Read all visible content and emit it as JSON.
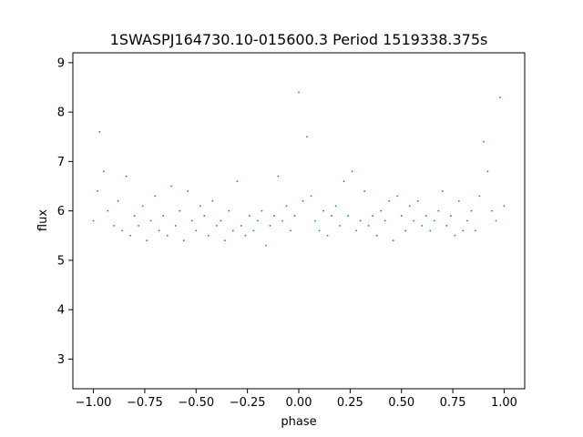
{
  "chart_data": {
    "type": "scatter",
    "title": "1SWASPJ164730.10-015600.3 Period 1519338.375s",
    "xlabel": "phase",
    "ylabel": "flux",
    "xlim": [
      -1.1,
      1.1
    ],
    "ylim": [
      2.4,
      9.2
    ],
    "x_ticks": [
      -1.0,
      -0.75,
      -0.5,
      -0.25,
      0.0,
      0.25,
      0.5,
      0.75,
      1.0
    ],
    "x_tick_labels": [
      "−1.00",
      "−0.75",
      "−0.50",
      "−0.25",
      "0.00",
      "0.25",
      "0.50",
      "0.75",
      "1.00"
    ],
    "y_ticks": [
      3,
      4,
      5,
      6,
      7,
      8,
      9
    ],
    "y_tick_labels": [
      "3",
      "4",
      "5",
      "6",
      "7",
      "8",
      "9"
    ],
    "grid": false,
    "point_color": "#1f77b4",
    "series": [
      {
        "x": [
          -1.0,
          -0.98,
          -0.97,
          -0.95,
          -0.93,
          -0.9,
          -0.88,
          -0.86,
          -0.84,
          -0.82,
          -0.8,
          -0.78,
          -0.76,
          -0.74,
          -0.72,
          -0.7,
          -0.68,
          -0.66,
          -0.64,
          -0.62,
          -0.6,
          -0.58,
          -0.56,
          -0.54,
          -0.52,
          -0.5,
          -0.48,
          -0.46,
          -0.44,
          -0.42,
          -0.4,
          -0.38,
          -0.36,
          -0.34,
          -0.32,
          -0.3,
          -0.28,
          -0.26,
          -0.24,
          -0.22,
          -0.2,
          -0.18,
          -0.16,
          -0.14,
          -0.12,
          -0.1,
          -0.08,
          -0.06,
          -0.04,
          -0.02,
          0.0,
          0.02,
          0.04,
          0.06,
          0.08,
          0.1,
          0.12,
          0.14,
          0.16,
          0.18,
          0.2,
          0.22,
          0.24,
          0.26,
          0.28,
          0.3,
          0.32,
          0.34,
          0.36,
          0.38,
          0.4,
          0.42,
          0.44,
          0.46,
          0.48,
          0.5,
          0.52,
          0.54,
          0.56,
          0.58,
          0.6,
          0.62,
          0.64,
          0.66,
          0.68,
          0.7,
          0.72,
          0.74,
          0.76,
          0.78,
          0.8,
          0.82,
          0.84,
          0.86,
          0.88,
          0.9,
          0.92,
          0.94,
          0.96,
          0.98,
          1.0
        ],
        "y": [
          5.8,
          6.4,
          7.6,
          6.8,
          6.0,
          5.7,
          6.2,
          5.6,
          6.7,
          5.5,
          5.9,
          5.7,
          6.1,
          5.4,
          5.8,
          6.3,
          5.6,
          5.9,
          5.5,
          6.5,
          5.7,
          6.0,
          5.4,
          6.4,
          5.8,
          5.6,
          6.1,
          5.9,
          5.5,
          6.2,
          5.7,
          5.8,
          5.4,
          6.0,
          5.6,
          6.6,
          5.7,
          5.5,
          5.9,
          5.6,
          5.8,
          6.0,
          5.3,
          5.7,
          5.9,
          6.7,
          5.8,
          6.1,
          5.6,
          5.9,
          8.4,
          6.2,
          7.5,
          6.3,
          5.8,
          5.6,
          6.0,
          5.5,
          5.9,
          6.1,
          5.7,
          6.6,
          5.9,
          6.8,
          5.6,
          5.8,
          6.4,
          5.7,
          5.9,
          5.5,
          6.0,
          5.8,
          6.2,
          5.4,
          6.3,
          5.9,
          5.6,
          6.1,
          5.8,
          6.2,
          5.7,
          5.9,
          5.6,
          5.8,
          6.0,
          6.4,
          5.7,
          5.9,
          5.5,
          6.2,
          5.6,
          5.8,
          6.0,
          5.6,
          6.3,
          7.4,
          6.8,
          6.0,
          5.8,
          8.3,
          6.1
        ]
      }
    ]
  }
}
